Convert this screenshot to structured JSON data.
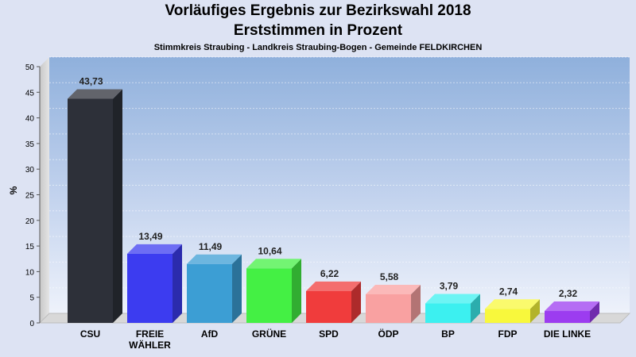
{
  "chart_data": {
    "type": "bar",
    "title": "Vorläufiges Ergebnis zur Bezirkswahl 2018",
    "subtitle": "Erststimmen in Prozent",
    "subtitle2": "Stimmkreis Straubing - Landkreis Straubing-Bogen - Gemeinde FELDKIRCHEN",
    "ylabel": "%",
    "xlabel": "",
    "ylim": [
      0,
      50
    ],
    "yticks": [
      "0",
      "5",
      "10",
      "15",
      "20",
      "25",
      "30",
      "35",
      "40",
      "45",
      "50"
    ],
    "grid": true,
    "categories": [
      [
        "CSU"
      ],
      [
        "FREIE",
        "WÄHLER"
      ],
      [
        "AfD"
      ],
      [
        "GRÜNE"
      ],
      [
        "SPD"
      ],
      [
        "ÖDP"
      ],
      [
        "BP"
      ],
      [
        "FDP"
      ],
      [
        "DIE LINKE"
      ]
    ],
    "values": [
      43.73,
      13.49,
      11.49,
      10.64,
      6.22,
      5.58,
      3.79,
      2.74,
      2.32
    ],
    "value_labels": [
      "43,73",
      "13,49",
      "11,49",
      "10,64",
      "6,22",
      "5,58",
      "3,79",
      "2,74",
      "2,32"
    ],
    "colors": [
      "#2d3039",
      "#3c3cf0",
      "#3c9ed4",
      "#44f044",
      "#f03c3c",
      "#f9a1a1",
      "#3cf0f0",
      "#f8f83c",
      "#9c3cf0"
    ]
  }
}
